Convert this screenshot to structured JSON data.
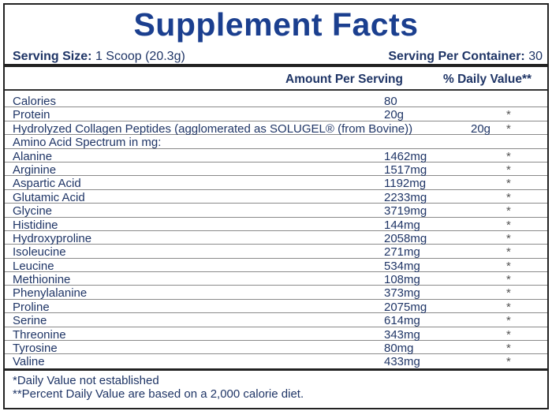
{
  "title": "Supplement Facts",
  "serving_size": {
    "label": "Serving Size:",
    "value": "1 Scoop (20.3g)"
  },
  "servings_per_container": {
    "label": "Serving Per Container:",
    "value": "30"
  },
  "headers": {
    "amount": "Amount Per Serving",
    "daily_value": "% Daily Value**"
  },
  "rows": [
    {
      "name": "Calories",
      "amount": "80",
      "dv": ""
    },
    {
      "name": "Protein",
      "amount": "20g",
      "dv": "*"
    },
    {
      "name": "Hydrolyzed Collagen Peptides (agglomerated as SOLUGEL® (from Bovine))",
      "amount": "20g",
      "dv": "*"
    },
    {
      "name": "Amino Acid Spectrum in mg:",
      "amount": "",
      "dv": ""
    },
    {
      "name": "Alanine",
      "amount": "1462mg",
      "dv": "*"
    },
    {
      "name": "Arginine",
      "amount": "1517mg",
      "dv": "*"
    },
    {
      "name": "Aspartic Acid",
      "amount": "1192mg",
      "dv": "*"
    },
    {
      "name": "Glutamic Acid",
      "amount": "2233mg",
      "dv": "*"
    },
    {
      "name": "Glycine",
      "amount": "3719mg",
      "dv": "*"
    },
    {
      "name": "Histidine",
      "amount": "144mg",
      "dv": "*"
    },
    {
      "name": "Hydroxyproline",
      "amount": "2058mg",
      "dv": "*"
    },
    {
      "name": "Isoleucine",
      "amount": "271mg",
      "dv": "*"
    },
    {
      "name": "Leucine",
      "amount": "534mg",
      "dv": "*"
    },
    {
      "name": "Methionine",
      "amount": "108mg",
      "dv": "*"
    },
    {
      "name": "Phenylalanine",
      "amount": "373mg",
      "dv": "*"
    },
    {
      "name": "Proline",
      "amount": "2075mg",
      "dv": "*"
    },
    {
      "name": "Serine",
      "amount": "614mg",
      "dv": "*"
    },
    {
      "name": "Threonine",
      "amount": "343mg",
      "dv": "*"
    },
    {
      "name": "Tyrosine",
      "amount": "80mg",
      "dv": "*"
    },
    {
      "name": "Valine",
      "amount": "433mg",
      "dv": "*"
    }
  ],
  "footnotes": [
    "*Daily Value not established",
    "**Percent Daily Value are based on a 2,000 calorie diet."
  ]
}
